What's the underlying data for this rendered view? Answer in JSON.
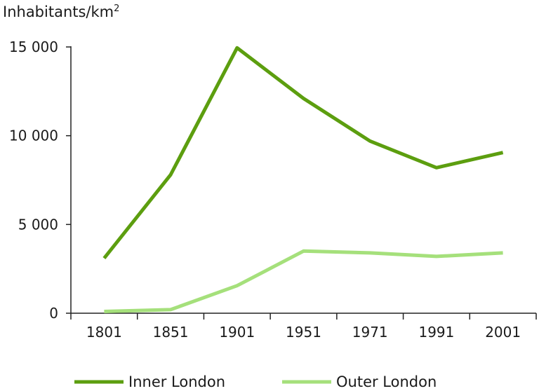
{
  "chart_data": {
    "type": "line",
    "ylabel": "Inhabitants/km",
    "ylabel_superscript": "2",
    "categories": [
      "1801",
      "1851",
      "1901",
      "1951",
      "1971",
      "1991",
      "2001"
    ],
    "ylim": [
      0,
      15000
    ],
    "yticks": [
      0,
      5000,
      10000,
      15000
    ],
    "ytick_labels": [
      "0",
      "5 000",
      "10 000",
      "15 000"
    ],
    "grid": false,
    "legend_position": "bottom",
    "series": [
      {
        "name": "Inner London",
        "color": "#5c9e0f",
        "values": [
          3100,
          7800,
          14950,
          12100,
          9700,
          8200,
          9050
        ]
      },
      {
        "name": "Outer London",
        "color": "#a5e07b",
        "values": [
          100,
          200,
          1550,
          3500,
          3400,
          3200,
          3400
        ]
      }
    ]
  }
}
